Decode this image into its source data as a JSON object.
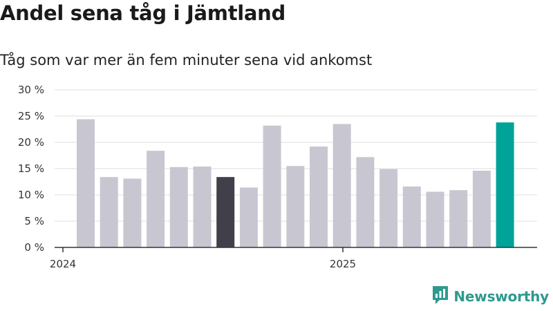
{
  "chart_data": {
    "type": "bar",
    "title": "Andel sena tåg i Jämtland",
    "subtitle": "Tåg som var mer än fem minuter sena vid ankomst",
    "x_tick_labels": [
      "2024",
      "2025"
    ],
    "y_tick_labels": [
      "0 %",
      "5 %",
      "10 %",
      "15 %",
      "20 %",
      "25 %",
      "30 %"
    ],
    "ylim": [
      0,
      30
    ],
    "y_ticks": [
      0,
      5,
      10,
      15,
      20,
      25,
      30
    ],
    "grid": true,
    "categories": [
      "2024-01",
      "2024-02",
      "2024-03",
      "2024-04",
      "2024-05",
      "2024-06",
      "2024-07",
      "2024-08",
      "2024-09",
      "2024-10",
      "2024-11",
      "2024-12",
      "2025-01",
      "2025-02",
      "2025-03",
      "2025-04",
      "2025-05",
      "2025-06",
      "2025-07"
    ],
    "values": [
      24.4,
      13.4,
      13.1,
      18.4,
      15.3,
      15.4,
      13.4,
      11.4,
      23.2,
      15.5,
      19.2,
      23.5,
      17.2,
      14.9,
      11.6,
      10.6,
      10.9,
      14.6,
      23.8
    ],
    "colors": {
      "default": "#c8c7d1",
      "highlight_dark": "#41404a",
      "highlight_latest": "#00a398",
      "axis": "#333333",
      "grid": "#dddddd"
    },
    "highlight_dark_index": 6,
    "highlight_latest_index": 18
  },
  "brand": {
    "name": "Newsworthy",
    "icon": "newsworthy-logo-icon",
    "color": "#2e9a8e"
  }
}
